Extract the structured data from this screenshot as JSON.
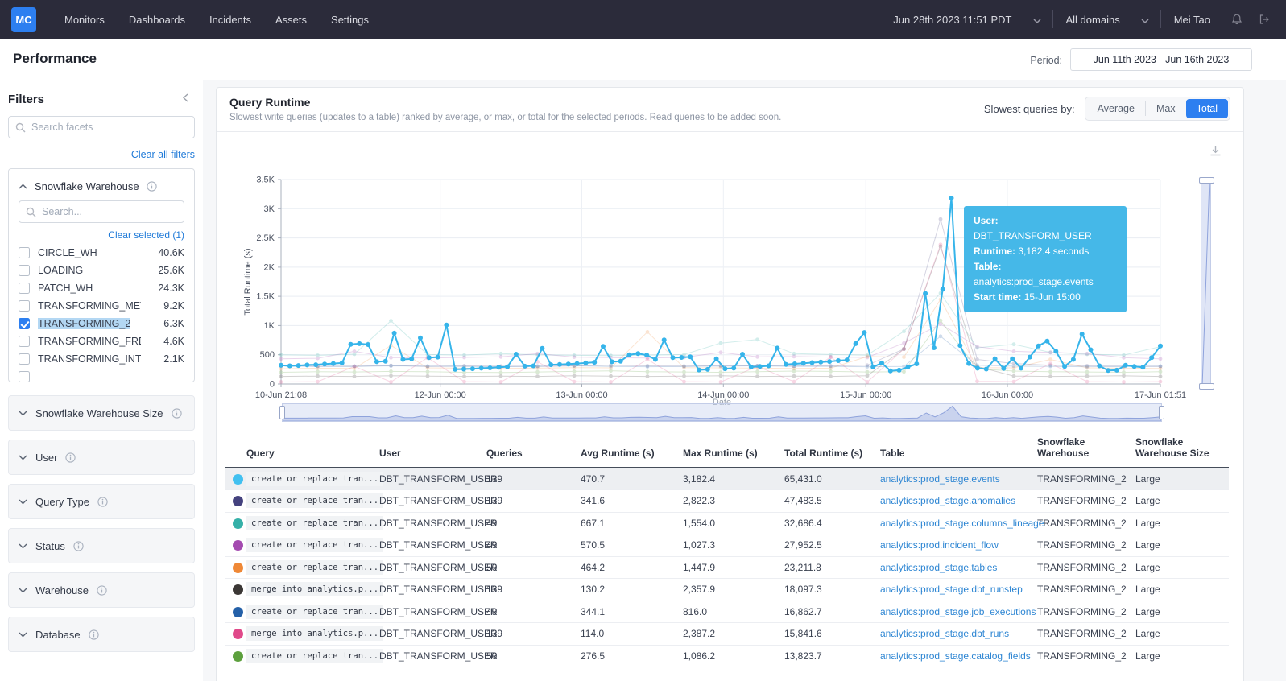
{
  "nav": {
    "logo": "MC",
    "items": [
      "Monitors",
      "Dashboards",
      "Incidents",
      "Assets",
      "Settings"
    ],
    "datetime": "Jun 28th 2023 11:51 PDT",
    "domain": "All domains",
    "user": "Mei Tao"
  },
  "header": {
    "title": "Performance",
    "period_label": "Period:",
    "period_value": "Jun 11th 2023 - Jun 16th 2023"
  },
  "filters": {
    "title": "Filters",
    "search_placeholder": "Search facets",
    "clear_all": "Clear all filters",
    "warehouse_facet": {
      "title": "Snowflake Warehouse",
      "search_placeholder": "Search...",
      "clear_selected": "Clear selected (1)",
      "options": [
        {
          "label": "CIRCLE_WH",
          "count": "40.6K",
          "checked": false
        },
        {
          "label": "LOADING",
          "count": "25.6K",
          "checked": false
        },
        {
          "label": "PATCH_WH",
          "count": "24.3K",
          "checked": false
        },
        {
          "label": "TRANSFORMING_METRIC",
          "count": "9.2K",
          "checked": false
        },
        {
          "label": "TRANSFORMING_2",
          "count": "6.3K",
          "checked": true
        },
        {
          "label": "TRANSFORMING_FRESHN",
          "count": "4.6K",
          "checked": false
        },
        {
          "label": "TRANSFORMING_INTERNA",
          "count": "2.1K",
          "checked": false
        },
        {
          "label": "",
          "count": "",
          "checked": false
        }
      ]
    },
    "collapsed_sections": [
      "Snowflake Warehouse Size",
      "User",
      "Query Type",
      "Status",
      "Warehouse",
      "Database"
    ]
  },
  "panel": {
    "title": "Query Runtime",
    "subtitle": "Slowest write queries (updates to a table) ranked by average, or max, or total for the selected periods. Read queries to be added soon.",
    "slowest_by_label": "Slowest queries by:",
    "modes": [
      "Average",
      "Max",
      "Total"
    ],
    "active_mode": "Total"
  },
  "tooltip": {
    "user_label": "User:",
    "user": "DBT_TRANSFORM_USER",
    "runtime_label": "Runtime:",
    "runtime": "3,182.4 seconds",
    "table_label": "Table:",
    "table": "analytics:prod_stage.events",
    "start_label": "Start time:",
    "start": "15-Jun 15:00"
  },
  "chart_data": {
    "type": "line",
    "xlabel": "Date",
    "ylabel": "Total Runtime (s)",
    "ylim": [
      0,
      3500
    ],
    "grid": true,
    "y_ticks": [
      {
        "v": 0,
        "label": "0"
      },
      {
        "v": 500,
        "label": "500"
      },
      {
        "v": 1000,
        "label": "1K"
      },
      {
        "v": 1500,
        "label": "1.5K"
      },
      {
        "v": 2000,
        "label": "2K"
      },
      {
        "v": 2500,
        "label": "2.5K"
      },
      {
        "v": 3000,
        "label": "3K"
      },
      {
        "v": 3500,
        "label": "3.5K"
      }
    ],
    "x_ticks": [
      {
        "pos": 0.0,
        "label": "10-Jun 21:08"
      },
      {
        "pos": 0.181,
        "label": "12-Jun 00:00"
      },
      {
        "pos": 0.342,
        "label": "13-Jun 00:00"
      },
      {
        "pos": 0.503,
        "label": "14-Jun 00:00"
      },
      {
        "pos": 0.665,
        "label": "15-Jun 00:00"
      },
      {
        "pos": 0.826,
        "label": "16-Jun 00:00"
      },
      {
        "pos": 1.0,
        "label": "17-Jun 01:51"
      }
    ],
    "series": [
      {
        "name": "analytics:prod_stage.events",
        "color": "#35b4ea",
        "highlighted": true,
        "values": [
          320,
          310,
          315,
          325,
          330,
          340,
          350,
          360,
          680,
          690,
          675,
          380,
          390,
          870,
          420,
          430,
          790,
          450,
          460,
          1010,
          250,
          255,
          260,
          270,
          275,
          285,
          295,
          510,
          305,
          310,
          610,
          330,
          335,
          340,
          350,
          360,
          370,
          645,
          380,
          390,
          500,
          520,
          495,
          420,
          755,
          450,
          455,
          465,
          240,
          250,
          430,
          260,
          270,
          510,
          290,
          300,
          310,
          615,
          335,
          345,
          355,
          365,
          375,
          385,
          400,
          410,
          690,
          880,
          290,
          360,
          225,
          235,
          290,
          345,
          1550,
          620,
          1620,
          3182.4,
          660,
          350,
          270,
          255,
          430,
          265,
          430,
          270,
          460,
          650,
          735,
          560,
          300,
          420,
          855,
          585,
          310,
          230,
          235,
          320,
          300,
          285,
          450,
          650
        ]
      },
      {
        "name": "analytics:prod_stage.anomalies",
        "color": "#44427e",
        "highlighted": false,
        "values": [
          310,
          300,
          305,
          315,
          300,
          310,
          305,
          300,
          310,
          320,
          310,
          305,
          315,
          310,
          305,
          310,
          320,
          600,
          2822,
          420,
          350,
          320,
          310,
          305,
          300
        ]
      },
      {
        "name": "analytics:prod_stage.columns_lineage",
        "color": "#35b0a8",
        "highlighted": false,
        "values": [
          500,
          490,
          510,
          1080,
          505,
          495,
          520,
          500,
          490,
          485,
          495,
          505,
          700,
          760,
          520,
          505,
          495,
          900,
          1554,
          620,
          680,
          540,
          510,
          495,
          640
        ]
      },
      {
        "name": "analytics:prod.incident_flow",
        "color": "#a44bb0",
        "highlighted": false,
        "values": [
          430,
          440,
          560,
          450,
          445,
          455,
          465,
          520,
          460,
          450,
          445,
          455,
          540,
          465,
          470,
          460,
          455,
          700,
          1027,
          640,
          560,
          540,
          520,
          450,
          430
        ]
      },
      {
        "name": "analytics:prod_stage.tables",
        "color": "#ef8836",
        "highlighted": false,
        "values": [
          260,
          270,
          265,
          660,
          275,
          270,
          265,
          270,
          280,
          275,
          890,
          280,
          275,
          270,
          265,
          270,
          470,
          460,
          1448,
          280,
          275,
          420,
          275,
          270,
          265
        ]
      },
      {
        "name": "analytics:prod_stage.dbt_runstep",
        "color": "#3b3735",
        "highlighted": false,
        "values": [
          130,
          135,
          130,
          140,
          135,
          130,
          135,
          130,
          140,
          135,
          130,
          135,
          140,
          130,
          135,
          130,
          140,
          600,
          2358,
          300,
          135,
          130,
          135,
          140,
          130
        ]
      },
      {
        "name": "analytics:prod_stage.job_executions",
        "color": "#2460a8",
        "highlighted": false,
        "values": [
          310,
          305,
          300,
          310,
          305,
          300,
          295,
          305,
          310,
          300,
          295,
          300,
          305,
          310,
          305,
          300,
          295,
          300,
          816,
          320,
          305,
          300,
          295,
          300,
          305
        ]
      },
      {
        "name": "analytics:prod_stage.dbt_runs",
        "color": "#e0498a",
        "highlighted": false,
        "values": [
          35,
          40,
          300,
          35,
          450,
          40,
          35,
          380,
          40,
          35,
          420,
          40,
          35,
          300,
          40,
          460,
          35,
          600,
          2387,
          45,
          40,
          350,
          40,
          35,
          40
        ]
      },
      {
        "name": "analytics:prod_stage.catalog_fields",
        "color": "#5da03e",
        "highlighted": false,
        "values": [
          200,
          210,
          205,
          215,
          210,
          200,
          195,
          205,
          215,
          225,
          210,
          205,
          200,
          210,
          220,
          215,
          205,
          210,
          1086,
          260,
          220,
          210,
          205,
          200,
          210
        ]
      }
    ]
  },
  "table": {
    "columns": [
      "Query",
      "User",
      "Queries",
      "Avg Runtime (s)",
      "Max Runtime (s)",
      "Total Runtime (s)",
      "Table",
      "Snowflake Warehouse",
      "Snowflake Warehouse Size"
    ],
    "rows": [
      {
        "color": "#41c0f0",
        "query": "create or replace tran...",
        "user": "DBT_TRANSFORM_USER",
        "queries": "139",
        "avg": "470.7",
        "max": "3,182.4",
        "total": "65,431.0",
        "table": "analytics:prod_stage.events",
        "warehouse": "TRANSFORMING_2",
        "size": "Large",
        "highlighted": true
      },
      {
        "color": "#44427e",
        "query": "create or replace tran...",
        "user": "DBT_TRANSFORM_USER",
        "queries": "139",
        "avg": "341.6",
        "max": "2,822.3",
        "total": "47,483.5",
        "table": "analytics:prod_stage.anomalies",
        "warehouse": "TRANSFORMING_2",
        "size": "Large",
        "highlighted": false
      },
      {
        "color": "#35b0a8",
        "query": "create or replace tran...",
        "user": "DBT_TRANSFORM_USER",
        "queries": "49",
        "avg": "667.1",
        "max": "1,554.0",
        "total": "32,686.4",
        "table": "analytics:prod_stage.columns_lineage",
        "warehouse": "TRANSFORMING_2",
        "size": "Large",
        "highlighted": false
      },
      {
        "color": "#a44bb0",
        "query": "create or replace tran...",
        "user": "DBT_TRANSFORM_USER",
        "queries": "49",
        "avg": "570.5",
        "max": "1,027.3",
        "total": "27,952.5",
        "table": "analytics:prod.incident_flow",
        "warehouse": "TRANSFORMING_2",
        "size": "Large",
        "highlighted": false
      },
      {
        "color": "#ef8836",
        "query": "create or replace tran...",
        "user": "DBT_TRANSFORM_USER",
        "queries": "50",
        "avg": "464.2",
        "max": "1,447.9",
        "total": "23,211.8",
        "table": "analytics:prod_stage.tables",
        "warehouse": "TRANSFORMING_2",
        "size": "Large",
        "highlighted": false
      },
      {
        "color": "#3b3735",
        "query": "merge into analytics.p...",
        "user": "DBT_TRANSFORM_USER",
        "queries": "139",
        "avg": "130.2",
        "max": "2,357.9",
        "total": "18,097.3",
        "table": "analytics:prod_stage.dbt_runstep",
        "warehouse": "TRANSFORMING_2",
        "size": "Large",
        "highlighted": false
      },
      {
        "color": "#2460a8",
        "query": "create or replace tran...",
        "user": "DBT_TRANSFORM_USER",
        "queries": "49",
        "avg": "344.1",
        "max": "816.0",
        "total": "16,862.7",
        "table": "analytics:prod_stage.job_executions",
        "warehouse": "TRANSFORMING_2",
        "size": "Large",
        "highlighted": false
      },
      {
        "color": "#e0498a",
        "query": "merge into analytics.p...",
        "user": "DBT_TRANSFORM_USER",
        "queries": "139",
        "avg": "114.0",
        "max": "2,387.2",
        "total": "15,841.6",
        "table": "analytics:prod_stage.dbt_runs",
        "warehouse": "TRANSFORMING_2",
        "size": "Large",
        "highlighted": false
      },
      {
        "color": "#5da03e",
        "query": "create or replace tran...",
        "user": "DBT_TRANSFORM_USER",
        "queries": "50",
        "avg": "276.5",
        "max": "1,086.2",
        "total": "13,823.7",
        "table": "analytics:prod_stage.catalog_fields",
        "warehouse": "TRANSFORMING_2",
        "size": "Large",
        "highlighted": false
      }
    ]
  },
  "icons": {
    "search": "magnifier",
    "info": "circled-i",
    "bell": "bell",
    "logout": "sign-out",
    "download": "download-tray",
    "chevron_down": "chevron-down",
    "chevron_up": "chevron-up",
    "collapse": "chevron-left"
  },
  "colors": {
    "accent": "#2d7ff0",
    "tooltip_bg": "#45b8e8",
    "link": "#2e86d3",
    "nav_bg": "#2b2b3a",
    "highlight_series": "#35b4ea"
  }
}
